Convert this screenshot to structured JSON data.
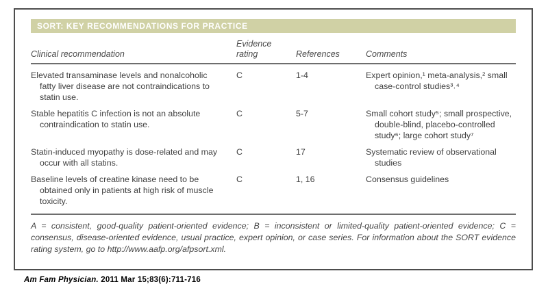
{
  "header": {
    "title": "SORT: KEY RECOMMENDATIONS FOR PRACTICE"
  },
  "table": {
    "columns": {
      "recommendation": "Clinical recommendation",
      "rating": "Evidence rating",
      "references": "References",
      "comments": "Comments"
    },
    "rows": [
      {
        "recommendation": "Elevated transaminase levels and nonalcoholic fatty liver disease are not contraindications to statin use.",
        "rating": "C",
        "references": "1-4",
        "comments": "Expert opinion,¹ meta-analysis,² small case-control studies³˒⁴"
      },
      {
        "recommendation": "Stable hepatitis C infection is not an absolute contraindication to statin use.",
        "rating": "C",
        "references": "5-7",
        "comments": "Small cohort study⁵; small prospective, double-blind, placebo-controlled study⁶; large cohort study⁷"
      },
      {
        "recommendation": "Statin-induced myopathy is dose-related and may occur with all statins.",
        "rating": "C",
        "references": "17",
        "comments": "Systematic review of observational studies"
      },
      {
        "recommendation": "Baseline levels of creatine kinase need to be obtained only in patients at high risk of muscle toxicity.",
        "rating": "C",
        "references": "1, 16",
        "comments": "Consensus guidelines"
      }
    ],
    "footnote": "A = consistent, good-quality patient-oriented evidence; B = inconsistent or limited-quality patient-oriented evidence; C = consensus, disease-oriented evidence, usual practice, expert opinion, or case series. For information about the SORT evidence rating system, go to http://www.aafp.org/afpsort.xml."
  },
  "citation": {
    "journal": "Am Fam Physician.",
    "details": " 2011 Mar 15;83(6):711-716"
  },
  "colors": {
    "header_bar": "#d0d1a5",
    "rule": "#6e6e6e",
    "body_text": "#3f3f3f"
  }
}
